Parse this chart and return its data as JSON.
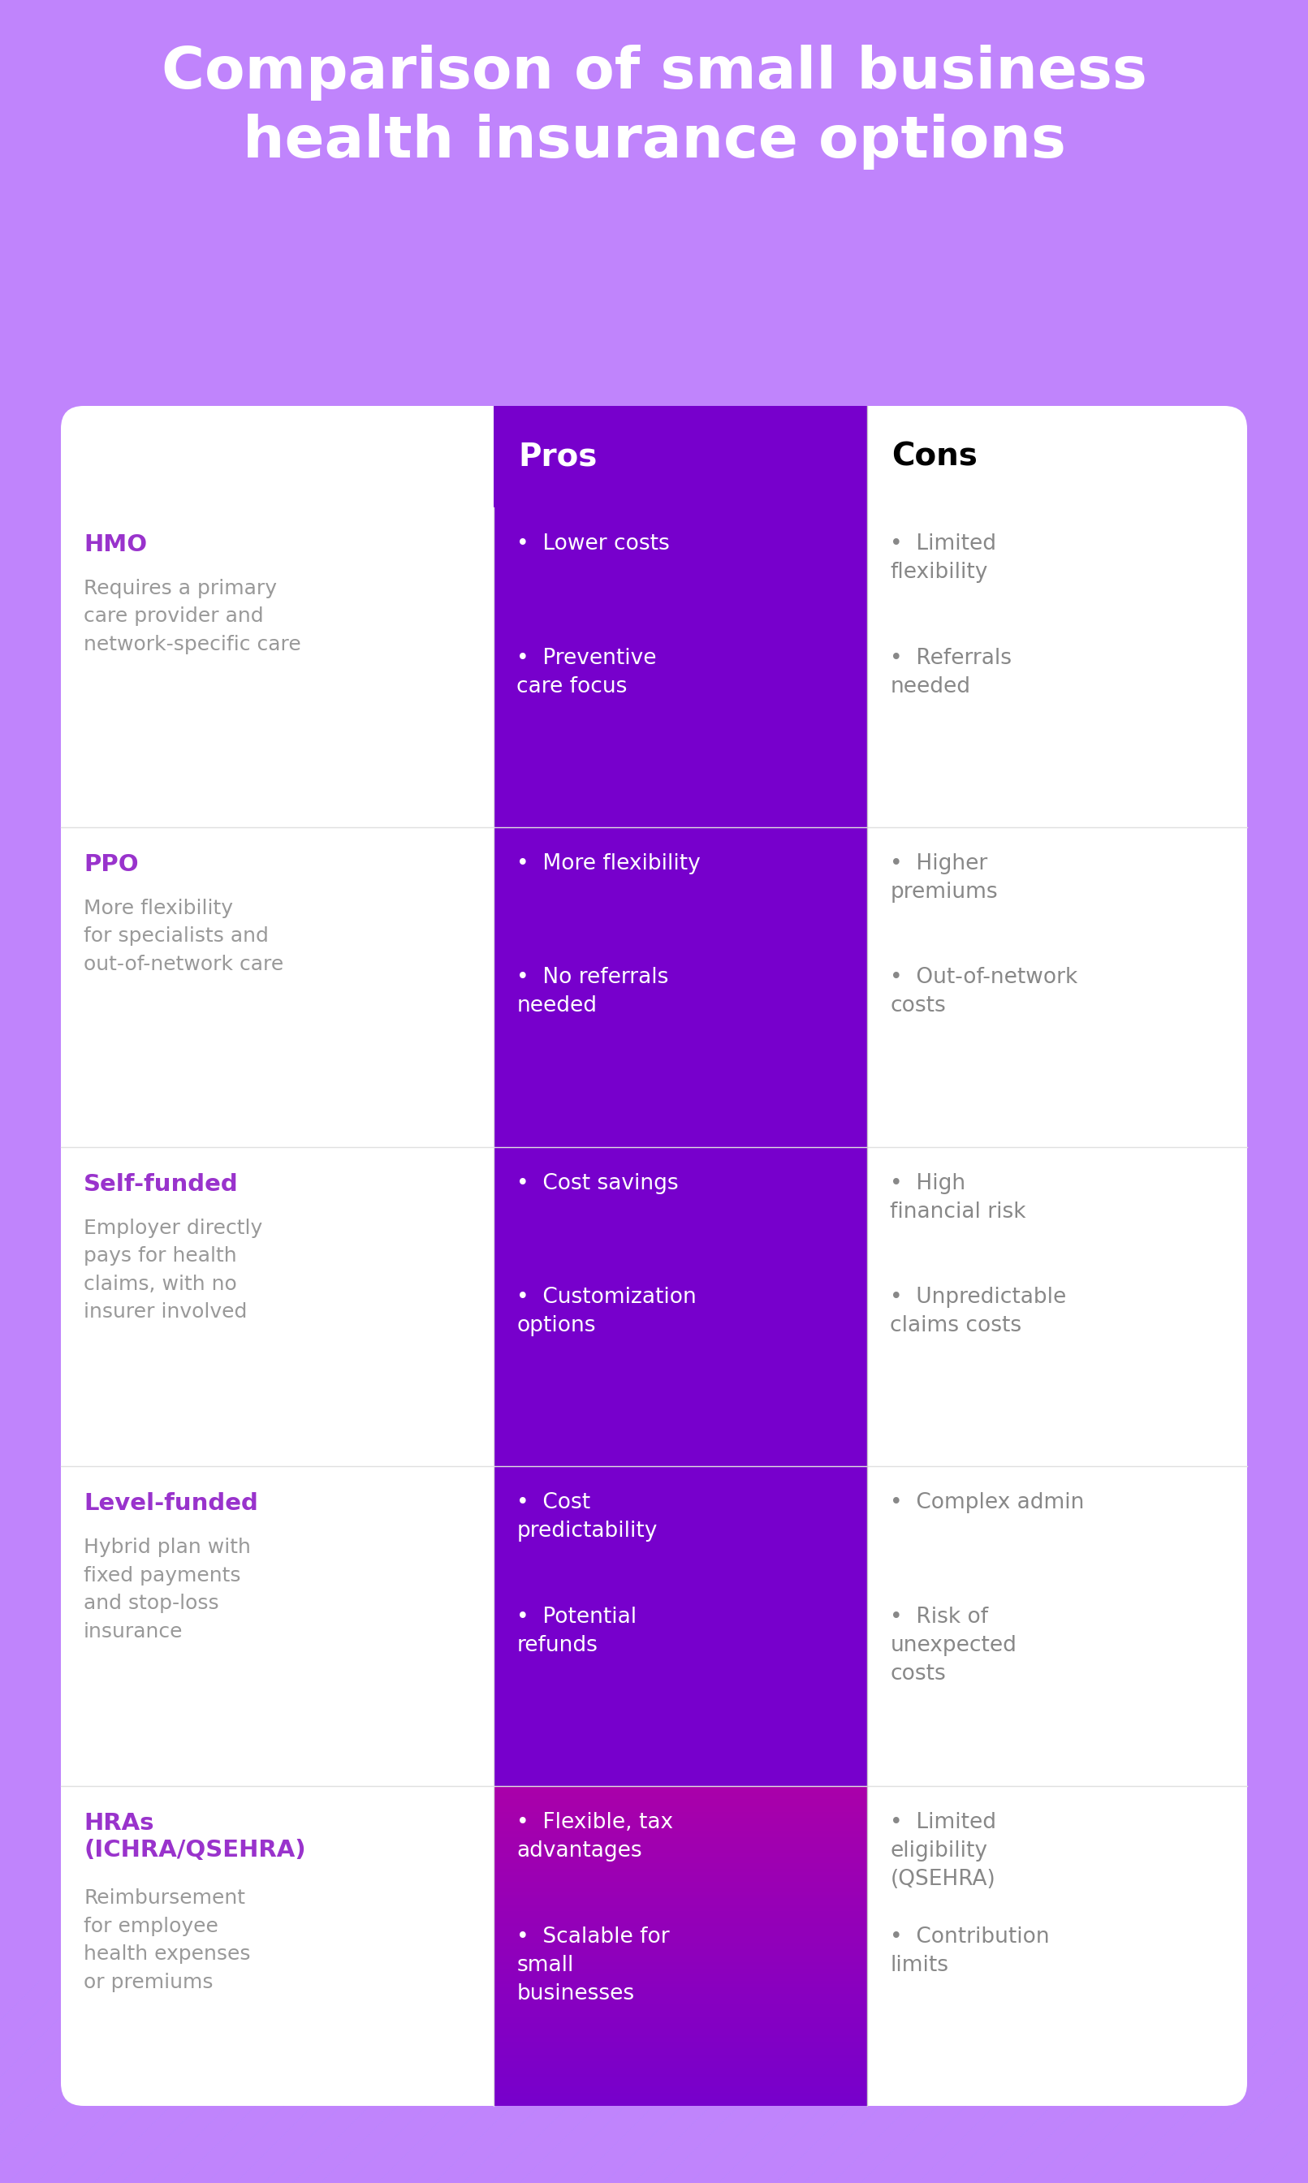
{
  "title": "Comparison of small business\nhealth insurance options",
  "bg_color": "#c084fc",
  "table_bg": "#ffffff",
  "pros_header_bg": "#7700cc",
  "pros_header_text": "#ffffff",
  "cons_header_bg": "#ffffff",
  "cons_header_text": "#000000",
  "row_title_color": "#9933cc",
  "row_desc_color": "#999999",
  "pros_col_bg": "#7700cc",
  "pros_text_color": "#ffffff",
  "cons_col_bg": "#ffffff",
  "cons_text_color": "#888888",
  "divider_color": "#e0e0e0",
  "last_row_pros_bg_top": "#7700cc",
  "last_row_pros_bg_bottom": "#aa00aa",
  "rows": [
    {
      "title": "HMO",
      "desc": "Requires a primary\ncare provider and\nnetwork-specific care",
      "pros": [
        "Lower costs",
        "Preventive\ncare focus"
      ],
      "cons": [
        "Limited\nflexibility",
        "Referrals\nneeded"
      ]
    },
    {
      "title": "PPO",
      "desc": "More flexibility\nfor specialists and\nout-of-network care",
      "pros": [
        "More flexibility",
        "No referrals\nneeded"
      ],
      "cons": [
        "Higher\npremiums",
        "Out-of-network\ncosts"
      ]
    },
    {
      "title": "Self-funded",
      "desc": "Employer directly\npays for health\nclaims, with no\ninsurer involved",
      "pros": [
        "Cost savings",
        "Customization\noptions"
      ],
      "cons": [
        "High\nfinancial risk",
        "Unpredictable\nclaims costs"
      ]
    },
    {
      "title": "Level-funded",
      "desc": "Hybrid plan with\nfixed payments\nand stop-loss\ninsurance",
      "pros": [
        "Cost\npredictability",
        "Potential\nrefunds"
      ],
      "cons": [
        "Complex admin",
        "Risk of\nunexpected\ncosts"
      ]
    },
    {
      "title": "HRAs\n(ICHRA/QSEHRA)",
      "desc": "Reimbursement\nfor employee\nhealth expenses\nor premiums",
      "pros": [
        "Flexible, tax\nadvantages",
        "Scalable for\nsmall\nbusinesses"
      ],
      "cons": [
        "Limited\neligibility\n(QSEHRA)",
        "Contribution\nlimits"
      ]
    }
  ]
}
